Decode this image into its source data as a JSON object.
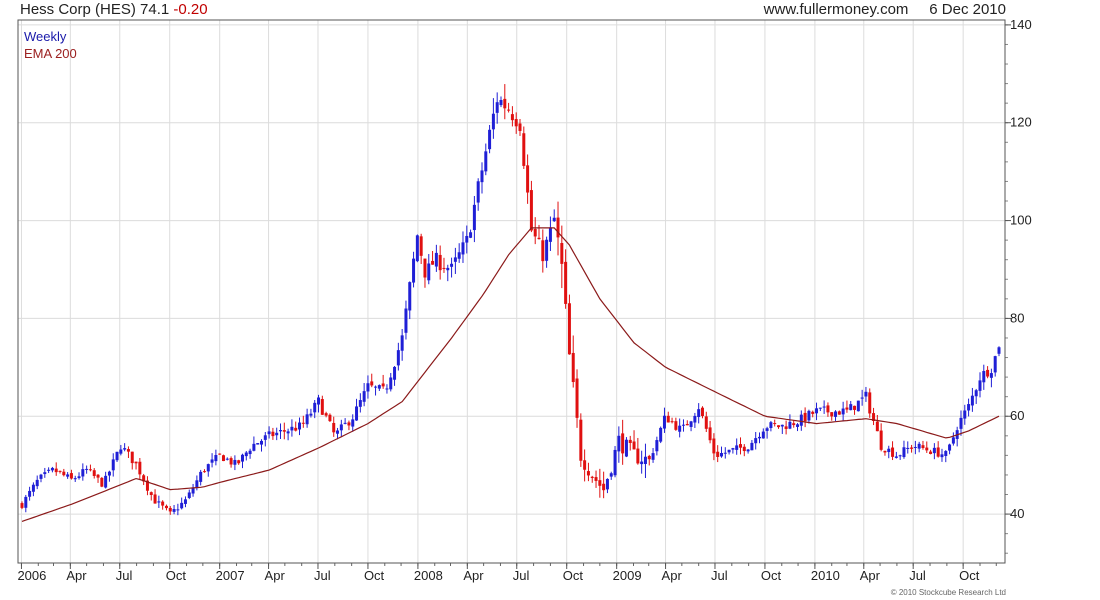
{
  "header": {
    "name": "Hess Corp (HES)",
    "last": "74.1",
    "change": "-0.20",
    "site": "www.fullermoney.com",
    "date": "6 Dec 2010"
  },
  "footer": {
    "copyright": "© 2010 Stockcube Research Ltd"
  },
  "colors": {
    "up": "#1f1fd6",
    "down": "#e01010",
    "ema": "#8b1a1a",
    "grid": "#dcdcdc"
  },
  "chart_data": {
    "type": "candlestick",
    "legend": [
      "Weekly",
      "EMA 200"
    ],
    "ylim": [
      30,
      141
    ],
    "yticks": [
      40,
      60,
      80,
      100,
      120,
      140
    ],
    "x_start": "2006-01-02",
    "x_end": "2010-12-06",
    "xticks": [
      {
        "label": "2006",
        "date": "2006-01-01"
      },
      {
        "label": "Apr",
        "date": "2006-04-01"
      },
      {
        "label": "Jul",
        "date": "2006-07-01"
      },
      {
        "label": "Oct",
        "date": "2006-10-01"
      },
      {
        "label": "2007",
        "date": "2007-01-01"
      },
      {
        "label": "Apr",
        "date": "2007-04-01"
      },
      {
        "label": "Jul",
        "date": "2007-07-01"
      },
      {
        "label": "Oct",
        "date": "2007-10-01"
      },
      {
        "label": "2008",
        "date": "2008-01-01"
      },
      {
        "label": "Apr",
        "date": "2008-04-01"
      },
      {
        "label": "Jul",
        "date": "2008-07-01"
      },
      {
        "label": "Oct",
        "date": "2008-10-01"
      },
      {
        "label": "2009",
        "date": "2009-01-01"
      },
      {
        "label": "Apr",
        "date": "2009-04-01"
      },
      {
        "label": "Jul",
        "date": "2009-07-01"
      },
      {
        "label": "Oct",
        "date": "2009-10-01"
      },
      {
        "label": "2010",
        "date": "2010-01-01"
      },
      {
        "label": "Apr",
        "date": "2010-04-01"
      },
      {
        "label": "Jul",
        "date": "2010-07-01"
      },
      {
        "label": "Oct",
        "date": "2010-10-01"
      }
    ],
    "close_anchors": [
      [
        "2006-01-02",
        42
      ],
      [
        "2006-02-01",
        47
      ],
      [
        "2006-03-01",
        49
      ],
      [
        "2006-04-03",
        47
      ],
      [
        "2006-05-01",
        49
      ],
      [
        "2006-06-01",
        46
      ],
      [
        "2006-07-03",
        54
      ],
      [
        "2006-08-01",
        50
      ],
      [
        "2006-09-01",
        43
      ],
      [
        "2006-10-02",
        40
      ],
      [
        "2006-11-01",
        43
      ],
      [
        "2006-12-01",
        49
      ],
      [
        "2007-01-02",
        52
      ],
      [
        "2007-02-01",
        50
      ],
      [
        "2007-03-01",
        54
      ],
      [
        "2007-04-02",
        56
      ],
      [
        "2007-05-01",
        57
      ],
      [
        "2007-06-01",
        58
      ],
      [
        "2007-07-02",
        63
      ],
      [
        "2007-08-01",
        56
      ],
      [
        "2007-09-04",
        60
      ],
      [
        "2007-10-01",
        66
      ],
      [
        "2007-11-01",
        65
      ],
      [
        "2007-12-03",
        76
      ],
      [
        "2007-12-31",
        97
      ],
      [
        "2008-01-15",
        89
      ],
      [
        "2008-02-01",
        92
      ],
      [
        "2008-03-03",
        90
      ],
      [
        "2008-04-01",
        96
      ],
      [
        "2008-05-01",
        112
      ],
      [
        "2008-05-26",
        125
      ],
      [
        "2008-06-16",
        123
      ],
      [
        "2008-07-07",
        120
      ],
      [
        "2008-07-28",
        98
      ],
      [
        "2008-08-18",
        93
      ],
      [
        "2008-09-08",
        100
      ],
      [
        "2008-09-22",
        90
      ],
      [
        "2008-10-06",
        72
      ],
      [
        "2008-10-27",
        52
      ],
      [
        "2008-11-17",
        48
      ],
      [
        "2008-12-08",
        45
      ],
      [
        "2009-01-05",
        55
      ],
      [
        "2009-02-02",
        52
      ],
      [
        "2009-03-02",
        51
      ],
      [
        "2009-04-01",
        60
      ],
      [
        "2009-05-01",
        57
      ],
      [
        "2009-06-01",
        62
      ],
      [
        "2009-07-01",
        52
      ],
      [
        "2009-08-03",
        53
      ],
      [
        "2009-09-01",
        54
      ],
      [
        "2009-10-01",
        58
      ],
      [
        "2009-11-02",
        58
      ],
      [
        "2009-12-01",
        59
      ],
      [
        "2010-01-04",
        61
      ],
      [
        "2010-02-01",
        61
      ],
      [
        "2010-03-01",
        61
      ],
      [
        "2010-04-05",
        64
      ],
      [
        "2010-05-03",
        54
      ],
      [
        "2010-06-01",
        52
      ],
      [
        "2010-07-01",
        54
      ],
      [
        "2010-08-02",
        53
      ],
      [
        "2010-09-01",
        52
      ],
      [
        "2010-09-20",
        58
      ],
      [
        "2010-10-11",
        62
      ],
      [
        "2010-11-01",
        68
      ],
      [
        "2010-11-22",
        70
      ],
      [
        "2010-12-06",
        74.1
      ]
    ],
    "ema_anchors": [
      [
        "2006-01-02",
        38.5
      ],
      [
        "2006-04-03",
        42
      ],
      [
        "2006-07-03",
        46
      ],
      [
        "2006-08-01",
        47.3
      ],
      [
        "2006-10-02",
        45
      ],
      [
        "2006-12-01",
        45.5
      ],
      [
        "2007-01-02",
        46.5
      ],
      [
        "2007-04-02",
        49
      ],
      [
        "2007-07-02",
        53.5
      ],
      [
        "2007-10-01",
        58.5
      ],
      [
        "2007-12-03",
        63
      ],
      [
        "2008-01-07",
        68
      ],
      [
        "2008-03-03",
        76
      ],
      [
        "2008-05-01",
        85
      ],
      [
        "2008-06-16",
        93
      ],
      [
        "2008-07-28",
        98.5
      ],
      [
        "2008-09-08",
        98.5
      ],
      [
        "2008-10-06",
        95
      ],
      [
        "2008-12-01",
        84
      ],
      [
        "2009-02-02",
        75
      ],
      [
        "2009-04-01",
        70
      ],
      [
        "2009-07-01",
        65
      ],
      [
        "2009-10-01",
        60
      ],
      [
        "2010-01-04",
        58.5
      ],
      [
        "2010-04-05",
        59.5
      ],
      [
        "2010-06-01",
        58.5
      ],
      [
        "2010-09-01",
        55.5
      ],
      [
        "2010-10-11",
        57
      ],
      [
        "2010-12-06",
        60
      ]
    ]
  }
}
